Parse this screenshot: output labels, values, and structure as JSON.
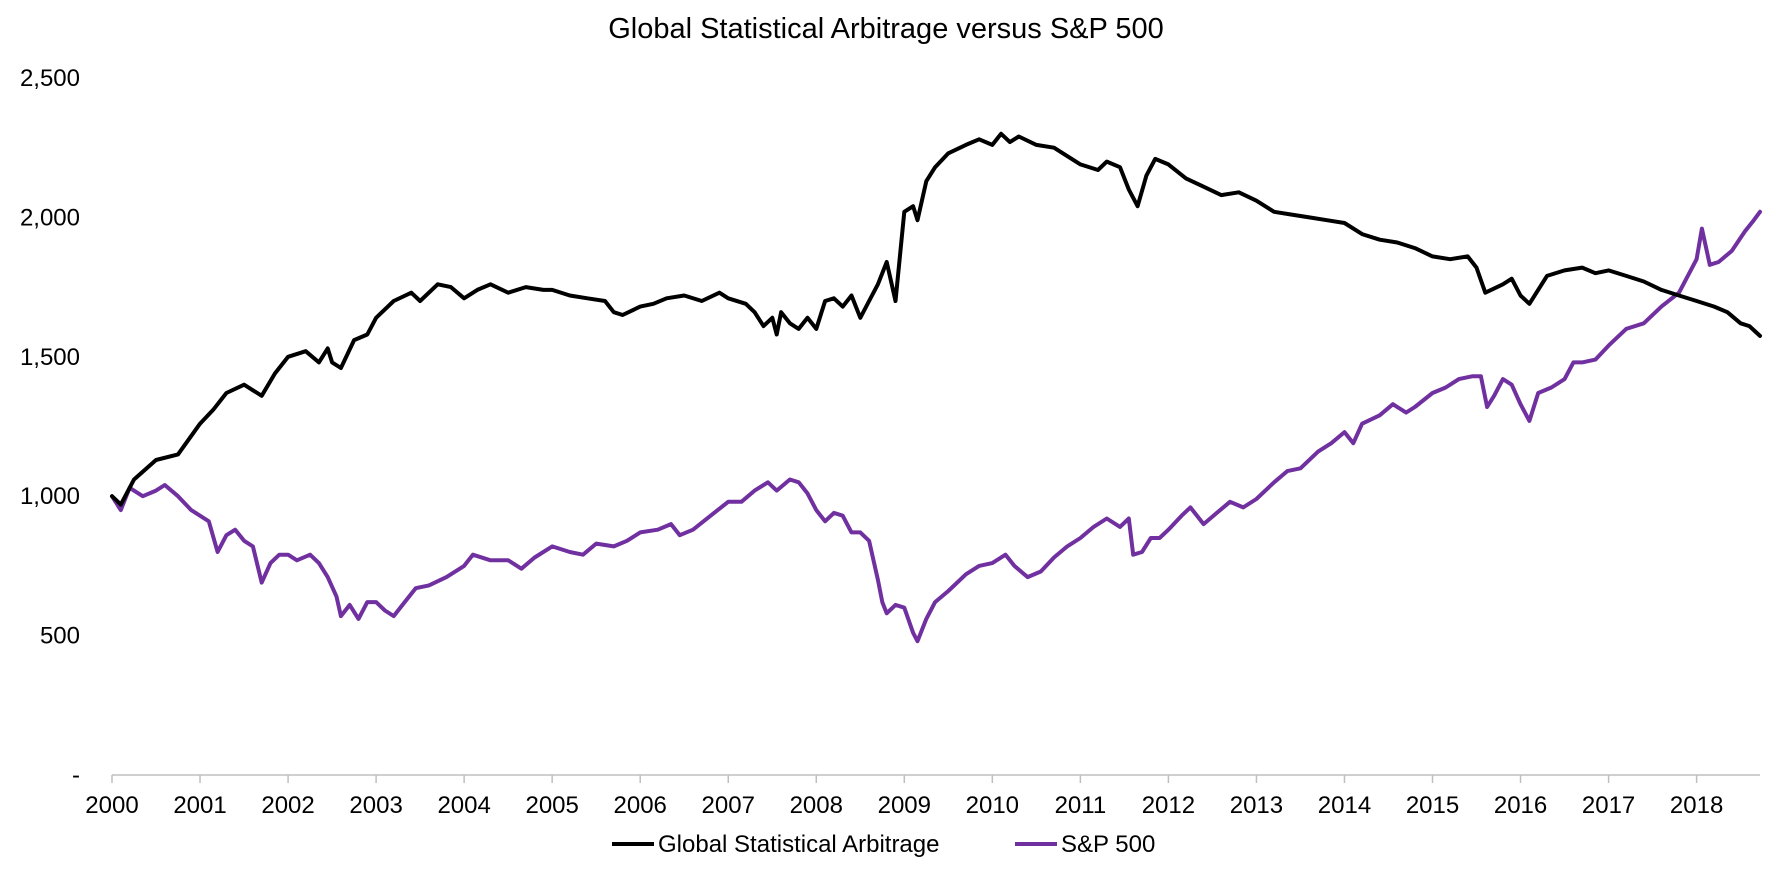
{
  "chart_data": {
    "type": "line",
    "title": "Global Statistical Arbitrage versus S&P 500",
    "xlabel": "",
    "ylabel": "",
    "xlim": [
      2000.0,
      2018.72
    ],
    "ylim": [
      0,
      2500
    ],
    "y_ticks": [
      {
        "value": 0,
        "label": "-"
      },
      {
        "value": 500,
        "label": "500"
      },
      {
        "value": 1000,
        "label": "1,000"
      },
      {
        "value": 1500,
        "label": "1,500"
      },
      {
        "value": 2000,
        "label": "2,000"
      },
      {
        "value": 2500,
        "label": "2,500"
      }
    ],
    "x_ticks": [
      {
        "value": 2000,
        "label": "2000"
      },
      {
        "value": 2001,
        "label": "2001"
      },
      {
        "value": 2002,
        "label": "2002"
      },
      {
        "value": 2003,
        "label": "2003"
      },
      {
        "value": 2004,
        "label": "2004"
      },
      {
        "value": 2005,
        "label": "2005"
      },
      {
        "value": 2006,
        "label": "2006"
      },
      {
        "value": 2007,
        "label": "2007"
      },
      {
        "value": 2008,
        "label": "2008"
      },
      {
        "value": 2009,
        "label": "2009"
      },
      {
        "value": 2010,
        "label": "2010"
      },
      {
        "value": 2011,
        "label": "2011"
      },
      {
        "value": 2012,
        "label": "2012"
      },
      {
        "value": 2013,
        "label": "2013"
      },
      {
        "value": 2014,
        "label": "2014"
      },
      {
        "value": 2015,
        "label": "2015"
      },
      {
        "value": 2016,
        "label": "2016"
      },
      {
        "value": 2017,
        "label": "2017"
      },
      {
        "value": 2018,
        "label": "2018"
      }
    ],
    "grid": false,
    "legend_position": "bottom",
    "series": [
      {
        "name": "Global Statistical Arbitrage",
        "color": "#000000",
        "points": [
          [
            2000.0,
            1000
          ],
          [
            2000.1,
            970
          ],
          [
            2000.25,
            1060
          ],
          [
            2000.5,
            1130
          ],
          [
            2000.75,
            1150
          ],
          [
            2001.0,
            1260
          ],
          [
            2001.15,
            1310
          ],
          [
            2001.3,
            1370
          ],
          [
            2001.5,
            1400
          ],
          [
            2001.7,
            1360
          ],
          [
            2001.85,
            1440
          ],
          [
            2002.0,
            1500
          ],
          [
            2002.2,
            1520
          ],
          [
            2002.35,
            1480
          ],
          [
            2002.45,
            1530
          ],
          [
            2002.5,
            1480
          ],
          [
            2002.6,
            1460
          ],
          [
            2002.75,
            1560
          ],
          [
            2002.9,
            1580
          ],
          [
            2003.0,
            1640
          ],
          [
            2003.2,
            1700
          ],
          [
            2003.4,
            1730
          ],
          [
            2003.5,
            1700
          ],
          [
            2003.7,
            1760
          ],
          [
            2003.85,
            1750
          ],
          [
            2004.0,
            1710
          ],
          [
            2004.15,
            1740
          ],
          [
            2004.3,
            1760
          ],
          [
            2004.5,
            1730
          ],
          [
            2004.7,
            1750
          ],
          [
            2004.9,
            1740
          ],
          [
            2005.0,
            1740
          ],
          [
            2005.2,
            1720
          ],
          [
            2005.4,
            1710
          ],
          [
            2005.6,
            1700
          ],
          [
            2005.7,
            1660
          ],
          [
            2005.8,
            1650
          ],
          [
            2006.0,
            1680
          ],
          [
            2006.15,
            1690
          ],
          [
            2006.3,
            1710
          ],
          [
            2006.5,
            1720
          ],
          [
            2006.7,
            1700
          ],
          [
            2006.9,
            1730
          ],
          [
            2007.0,
            1710
          ],
          [
            2007.2,
            1690
          ],
          [
            2007.3,
            1660
          ],
          [
            2007.4,
            1610
          ],
          [
            2007.5,
            1640
          ],
          [
            2007.55,
            1580
          ],
          [
            2007.6,
            1660
          ],
          [
            2007.7,
            1620
          ],
          [
            2007.8,
            1600
          ],
          [
            2007.9,
            1640
          ],
          [
            2008.0,
            1600
          ],
          [
            2008.1,
            1700
          ],
          [
            2008.2,
            1710
          ],
          [
            2008.3,
            1680
          ],
          [
            2008.4,
            1720
          ],
          [
            2008.5,
            1640
          ],
          [
            2008.6,
            1700
          ],
          [
            2008.7,
            1760
          ],
          [
            2008.8,
            1840
          ],
          [
            2008.9,
            1700
          ],
          [
            2009.0,
            2020
          ],
          [
            2009.1,
            2040
          ],
          [
            2009.15,
            1990
          ],
          [
            2009.25,
            2130
          ],
          [
            2009.35,
            2180
          ],
          [
            2009.5,
            2230
          ],
          [
            2009.7,
            2260
          ],
          [
            2009.85,
            2280
          ],
          [
            2010.0,
            2260
          ],
          [
            2010.1,
            2300
          ],
          [
            2010.2,
            2270
          ],
          [
            2010.3,
            2290
          ],
          [
            2010.5,
            2260
          ],
          [
            2010.7,
            2250
          ],
          [
            2010.85,
            2220
          ],
          [
            2011.0,
            2190
          ],
          [
            2011.2,
            2170
          ],
          [
            2011.3,
            2200
          ],
          [
            2011.45,
            2180
          ],
          [
            2011.55,
            2100
          ],
          [
            2011.65,
            2040
          ],
          [
            2011.75,
            2150
          ],
          [
            2011.85,
            2210
          ],
          [
            2012.0,
            2190
          ],
          [
            2012.2,
            2140
          ],
          [
            2012.4,
            2110
          ],
          [
            2012.6,
            2080
          ],
          [
            2012.8,
            2090
          ],
          [
            2013.0,
            2060
          ],
          [
            2013.2,
            2020
          ],
          [
            2013.4,
            2010
          ],
          [
            2013.6,
            2000
          ],
          [
            2013.8,
            1990
          ],
          [
            2014.0,
            1980
          ],
          [
            2014.2,
            1940
          ],
          [
            2014.4,
            1920
          ],
          [
            2014.6,
            1910
          ],
          [
            2014.8,
            1890
          ],
          [
            2015.0,
            1860
          ],
          [
            2015.2,
            1850
          ],
          [
            2015.4,
            1860
          ],
          [
            2015.5,
            1820
          ],
          [
            2015.6,
            1730
          ],
          [
            2015.8,
            1760
          ],
          [
            2015.9,
            1780
          ],
          [
            2016.0,
            1720
          ],
          [
            2016.1,
            1690
          ],
          [
            2016.3,
            1790
          ],
          [
            2016.5,
            1810
          ],
          [
            2016.7,
            1820
          ],
          [
            2016.85,
            1800
          ],
          [
            2017.0,
            1810
          ],
          [
            2017.2,
            1790
          ],
          [
            2017.4,
            1770
          ],
          [
            2017.6,
            1740
          ],
          [
            2017.8,
            1720
          ],
          [
            2018.0,
            1700
          ],
          [
            2018.2,
            1680
          ],
          [
            2018.35,
            1660
          ],
          [
            2018.5,
            1620
          ],
          [
            2018.6,
            1610
          ],
          [
            2018.72,
            1575
          ]
        ]
      },
      {
        "name": "S&P 500",
        "color": "#7030A0",
        "points": [
          [
            2000.0,
            1000
          ],
          [
            2000.1,
            950
          ],
          [
            2000.2,
            1030
          ],
          [
            2000.35,
            1000
          ],
          [
            2000.5,
            1020
          ],
          [
            2000.6,
            1040
          ],
          [
            2000.75,
            1000
          ],
          [
            2000.9,
            950
          ],
          [
            2001.0,
            930
          ],
          [
            2001.1,
            910
          ],
          [
            2001.2,
            800
          ],
          [
            2001.3,
            860
          ],
          [
            2001.4,
            880
          ],
          [
            2001.5,
            840
          ],
          [
            2001.6,
            820
          ],
          [
            2001.7,
            690
          ],
          [
            2001.8,
            760
          ],
          [
            2001.9,
            790
          ],
          [
            2002.0,
            790
          ],
          [
            2002.1,
            770
          ],
          [
            2002.25,
            790
          ],
          [
            2002.35,
            760
          ],
          [
            2002.45,
            710
          ],
          [
            2002.55,
            640
          ],
          [
            2002.6,
            570
          ],
          [
            2002.7,
            610
          ],
          [
            2002.8,
            560
          ],
          [
            2002.9,
            620
          ],
          [
            2003.0,
            620
          ],
          [
            2003.1,
            590
          ],
          [
            2003.2,
            570
          ],
          [
            2003.3,
            610
          ],
          [
            2003.45,
            670
          ],
          [
            2003.6,
            680
          ],
          [
            2003.8,
            710
          ],
          [
            2004.0,
            750
          ],
          [
            2004.1,
            790
          ],
          [
            2004.3,
            770
          ],
          [
            2004.5,
            770
          ],
          [
            2004.65,
            740
          ],
          [
            2004.8,
            780
          ],
          [
            2005.0,
            820
          ],
          [
            2005.2,
            800
          ],
          [
            2005.35,
            790
          ],
          [
            2005.5,
            830
          ],
          [
            2005.7,
            820
          ],
          [
            2005.85,
            840
          ],
          [
            2006.0,
            870
          ],
          [
            2006.2,
            880
          ],
          [
            2006.35,
            900
          ],
          [
            2006.45,
            860
          ],
          [
            2006.6,
            880
          ],
          [
            2006.8,
            930
          ],
          [
            2007.0,
            980
          ],
          [
            2007.15,
            980
          ],
          [
            2007.3,
            1020
          ],
          [
            2007.45,
            1050
          ],
          [
            2007.55,
            1020
          ],
          [
            2007.7,
            1060
          ],
          [
            2007.8,
            1050
          ],
          [
            2007.9,
            1010
          ],
          [
            2008.0,
            950
          ],
          [
            2008.1,
            910
          ],
          [
            2008.2,
            940
          ],
          [
            2008.3,
            930
          ],
          [
            2008.4,
            870
          ],
          [
            2008.5,
            870
          ],
          [
            2008.6,
            840
          ],
          [
            2008.7,
            700
          ],
          [
            2008.75,
            620
          ],
          [
            2008.8,
            580
          ],
          [
            2008.9,
            610
          ],
          [
            2009.0,
            600
          ],
          [
            2009.1,
            510
          ],
          [
            2009.15,
            480
          ],
          [
            2009.25,
            560
          ],
          [
            2009.35,
            620
          ],
          [
            2009.5,
            660
          ],
          [
            2009.7,
            720
          ],
          [
            2009.85,
            750
          ],
          [
            2010.0,
            760
          ],
          [
            2010.15,
            790
          ],
          [
            2010.25,
            750
          ],
          [
            2010.4,
            710
          ],
          [
            2010.55,
            730
          ],
          [
            2010.7,
            780
          ],
          [
            2010.85,
            820
          ],
          [
            2011.0,
            850
          ],
          [
            2011.15,
            890
          ],
          [
            2011.3,
            920
          ],
          [
            2011.45,
            890
          ],
          [
            2011.55,
            920
          ],
          [
            2011.6,
            790
          ],
          [
            2011.7,
            800
          ],
          [
            2011.8,
            850
          ],
          [
            2011.9,
            850
          ],
          [
            2012.0,
            880
          ],
          [
            2012.15,
            930
          ],
          [
            2012.25,
            960
          ],
          [
            2012.4,
            900
          ],
          [
            2012.55,
            940
          ],
          [
            2012.7,
            980
          ],
          [
            2012.85,
            960
          ],
          [
            2013.0,
            990
          ],
          [
            2013.2,
            1050
          ],
          [
            2013.35,
            1090
          ],
          [
            2013.5,
            1100
          ],
          [
            2013.7,
            1160
          ],
          [
            2013.85,
            1190
          ],
          [
            2014.0,
            1230
          ],
          [
            2014.1,
            1190
          ],
          [
            2014.2,
            1260
          ],
          [
            2014.4,
            1290
          ],
          [
            2014.55,
            1330
          ],
          [
            2014.7,
            1300
          ],
          [
            2014.8,
            1320
          ],
          [
            2015.0,
            1370
          ],
          [
            2015.15,
            1390
          ],
          [
            2015.3,
            1420
          ],
          [
            2015.45,
            1430
          ],
          [
            2015.55,
            1430
          ],
          [
            2015.62,
            1320
          ],
          [
            2015.7,
            1360
          ],
          [
            2015.8,
            1420
          ],
          [
            2015.9,
            1400
          ],
          [
            2016.0,
            1330
          ],
          [
            2016.1,
            1270
          ],
          [
            2016.2,
            1370
          ],
          [
            2016.35,
            1390
          ],
          [
            2016.5,
            1420
          ],
          [
            2016.6,
            1480
          ],
          [
            2016.7,
            1480
          ],
          [
            2016.85,
            1490
          ],
          [
            2017.0,
            1540
          ],
          [
            2017.2,
            1600
          ],
          [
            2017.4,
            1620
          ],
          [
            2017.6,
            1680
          ],
          [
            2017.8,
            1730
          ],
          [
            2018.0,
            1850
          ],
          [
            2018.06,
            1960
          ],
          [
            2018.15,
            1830
          ],
          [
            2018.25,
            1840
          ],
          [
            2018.4,
            1880
          ],
          [
            2018.55,
            1950
          ],
          [
            2018.65,
            1990
          ],
          [
            2018.72,
            2020
          ]
        ]
      }
    ]
  }
}
